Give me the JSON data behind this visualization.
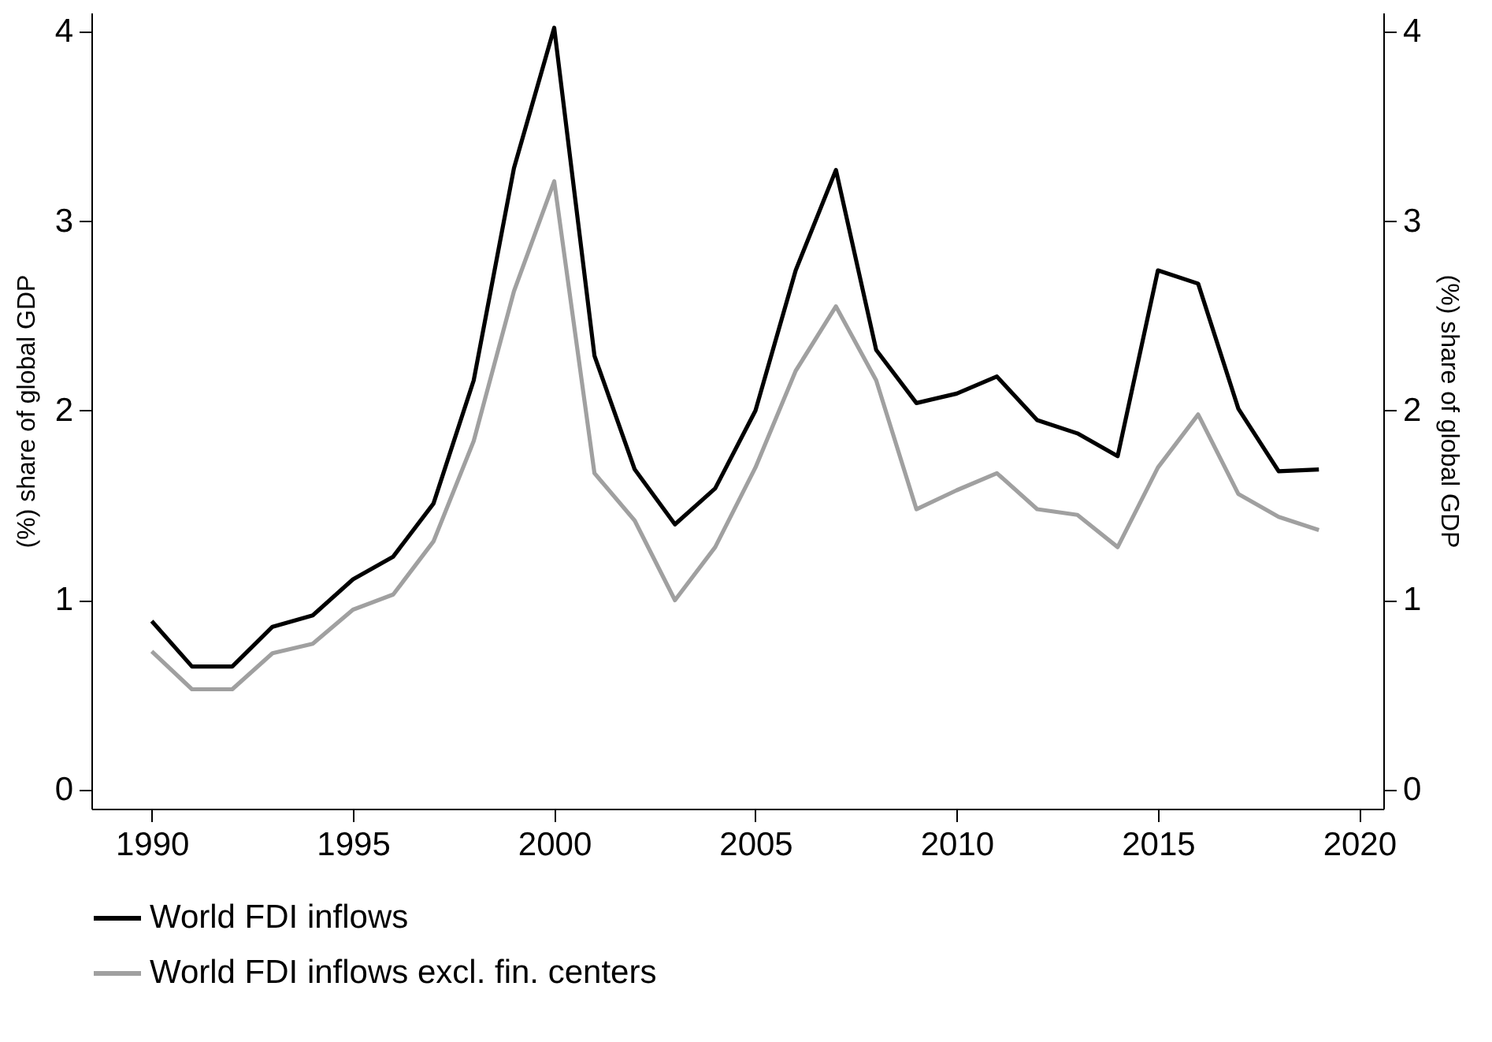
{
  "chart_data": {
    "type": "line",
    "x": [
      1990,
      1991,
      1992,
      1993,
      1994,
      1995,
      1996,
      1997,
      1998,
      1999,
      2000,
      2001,
      2002,
      2003,
      2004,
      2005,
      2006,
      2007,
      2008,
      2009,
      2010,
      2011,
      2012,
      2013,
      2014,
      2015,
      2016,
      2017,
      2018,
      2019
    ],
    "series": [
      {
        "name": "World FDI inflows",
        "color": "#000000",
        "values": [
          0.89,
          0.65,
          0.65,
          0.86,
          0.92,
          1.11,
          1.23,
          1.51,
          2.16,
          3.28,
          4.02,
          2.29,
          1.69,
          1.4,
          1.59,
          2.0,
          2.74,
          3.27,
          2.32,
          2.04,
          2.09,
          2.18,
          1.95,
          1.88,
          1.76,
          2.74,
          2.67,
          2.01,
          1.68,
          1.69
        ]
      },
      {
        "name": "World FDI inflows excl. fin. centers",
        "color": "#a0a0a0",
        "values": [
          0.73,
          0.53,
          0.53,
          0.72,
          0.77,
          0.95,
          1.03,
          1.31,
          1.84,
          2.63,
          3.21,
          1.67,
          1.42,
          1.0,
          1.28,
          1.7,
          2.21,
          2.55,
          2.16,
          1.48,
          1.58,
          1.67,
          1.48,
          1.45,
          1.28,
          1.7,
          1.98,
          1.56,
          1.44,
          1.37
        ]
      }
    ],
    "ylabel": "(%) share of global GDP",
    "y2label": "(%) share of global GDP",
    "xlim": [
      1988.5,
      2020.6
    ],
    "xticks": [
      1990,
      1995,
      2000,
      2005,
      2010,
      2015,
      2020
    ],
    "ylim": [
      -0.1,
      4.1
    ],
    "yticks": [
      0,
      1,
      2,
      3,
      4
    ],
    "y2lim": [
      -0.1,
      4.1
    ],
    "y2ticks": [
      0,
      1,
      2,
      3,
      4
    ],
    "grid": false,
    "legend": "bottom",
    "marker": "none",
    "line_style": "solid"
  }
}
